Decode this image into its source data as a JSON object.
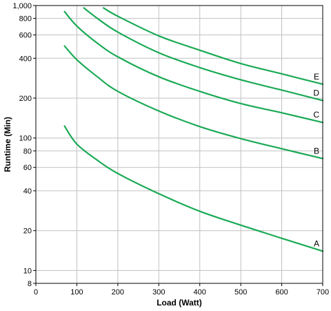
{
  "chart_data": {
    "type": "line",
    "title": "",
    "xlabel": "Load (Watt)",
    "ylabel": "Runtime (Min)",
    "x_scale": "linear",
    "y_scale": "log",
    "xlim": [
      0,
      700
    ],
    "ylim": [
      8,
      1000
    ],
    "grid": true,
    "legend": "none",
    "line_color": "#1aaa55",
    "x_ticks": [
      0,
      100,
      200,
      300,
      400,
      500,
      600,
      700
    ],
    "x_tick_labels": [
      "0",
      "100",
      "200",
      "300",
      "400",
      "500",
      "600",
      "700"
    ],
    "y_ticks": [
      8,
      10,
      20,
      40,
      60,
      80,
      100,
      200,
      400,
      600,
      800,
      1000
    ],
    "y_tick_labels": [
      "8",
      "10",
      "20",
      "40",
      "60",
      "80",
      "100",
      "200",
      "400",
      "600",
      "800",
      "1,000"
    ],
    "series": [
      {
        "name": "A",
        "x": [
          70,
          100,
          150,
          200,
          300,
          400,
          500,
          600,
          700
        ],
        "y": [
          123,
          90,
          68,
          54,
          38,
          28,
          22,
          17.5,
          14
        ]
      },
      {
        "name": "B",
        "x": [
          70,
          100,
          150,
          200,
          300,
          400,
          500,
          600,
          700
        ],
        "y": [
          495,
          390,
          290,
          225,
          160,
          122,
          99,
          83,
          70
        ]
      },
      {
        "name": "C",
        "x": [
          70,
          100,
          150,
          200,
          300,
          400,
          500,
          600,
          700
        ],
        "y": [
          900,
          700,
          520,
          410,
          290,
          225,
          182,
          155,
          131
        ]
      },
      {
        "name": "D",
        "x": [
          117,
          150,
          200,
          300,
          400,
          500,
          600,
          700
        ],
        "y": [
          960,
          800,
          630,
          440,
          340,
          275,
          230,
          192
        ]
      },
      {
        "name": "E",
        "x": [
          165,
          200,
          300,
          400,
          500,
          600,
          700
        ],
        "y": [
          960,
          830,
          590,
          460,
          365,
          305,
          255
        ]
      }
    ]
  }
}
